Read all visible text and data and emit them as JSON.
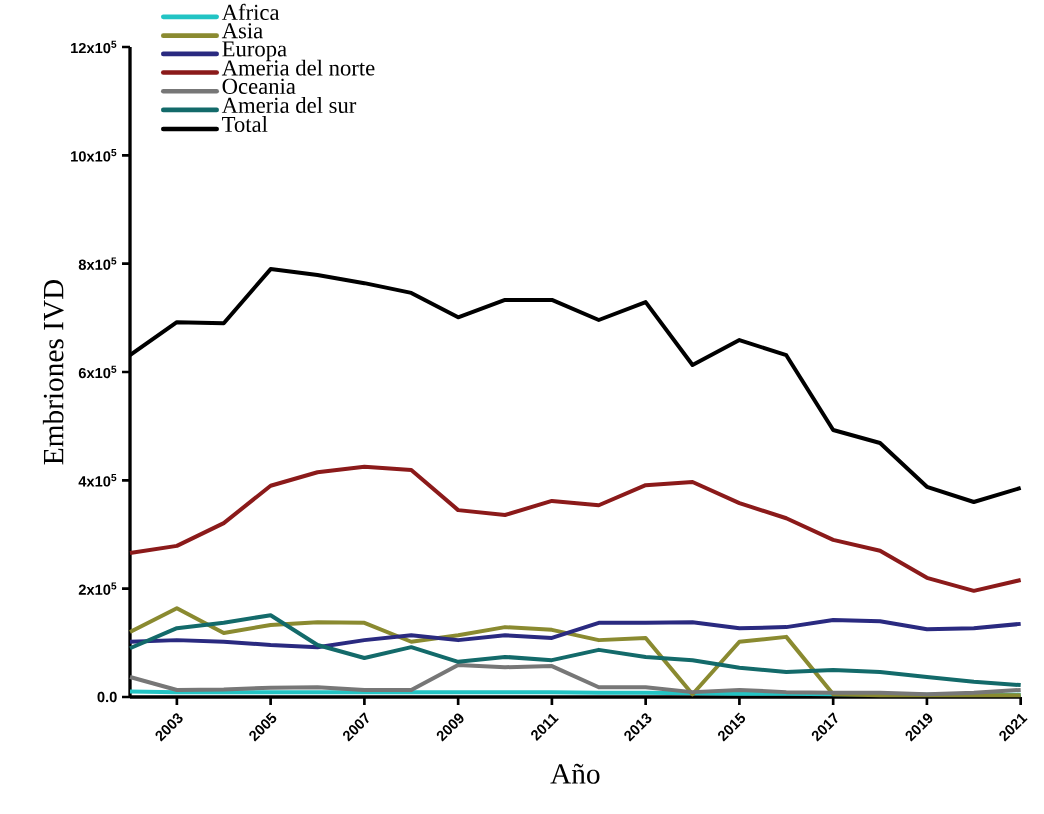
{
  "chart_data": {
    "type": "line",
    "xlabel": "Año",
    "ylabel": "Embriones IVD",
    "legend": "top left",
    "x": [
      2002,
      2003,
      2004,
      2005,
      2006,
      2007,
      2008,
      2009,
      2010,
      2011,
      2012,
      2013,
      2014,
      2015,
      2016,
      2017,
      2018,
      2019,
      2020,
      2021
    ],
    "xlim": [
      2002,
      2021
    ],
    "xticks": [
      2003,
      2005,
      2007,
      2009,
      2011,
      2013,
      2015,
      2017,
      2019,
      2021
    ],
    "ylim": [
      0,
      1200000
    ],
    "yticks": [
      {
        "value": 0,
        "label": "0.0"
      },
      {
        "value": 200000,
        "label": "2x10$^{5}$"
      },
      {
        "value": 400000,
        "label": "4x10$^{5}$"
      },
      {
        "value": 600000,
        "label": "6x10$^{5}$"
      },
      {
        "value": 800000,
        "label": "8x10$^{5}$"
      },
      {
        "value": 1000000,
        "label": "10x10$^{5}$"
      },
      {
        "value": 1200000,
        "label": "12x10$^{5}$"
      }
    ],
    "series": [
      {
        "name": "Africa",
        "color": "#22c4c4",
        "values": [
          10000,
          9000,
          9000,
          9000,
          9000,
          9000,
          9000,
          9000,
          9000,
          9000,
          8000,
          8000,
          7000,
          6000,
          6000,
          5000,
          5000,
          4000,
          4000,
          4000
        ]
      },
      {
        "name": "Asia",
        "color": "#8a8a30",
        "values": [
          120000,
          164000,
          118000,
          133000,
          138000,
          137000,
          102000,
          114000,
          129000,
          124000,
          105000,
          109000,
          5000,
          102000,
          111000,
          5000,
          3000,
          3000,
          3000,
          3000
        ]
      },
      {
        "name": "Europa",
        "color": "#2a2a80",
        "values": [
          102000,
          105000,
          102000,
          96000,
          92000,
          105000,
          114000,
          105000,
          114000,
          109000,
          137000,
          137000,
          138000,
          127000,
          129000,
          142000,
          140000,
          125000,
          127000,
          135000
        ]
      },
      {
        "name": "Ameria del norte",
        "color": "#8b1a1a",
        "values": [
          266000,
          279000,
          321000,
          390000,
          415000,
          425000,
          419000,
          345000,
          336000,
          362000,
          354000,
          391000,
          397000,
          358000,
          330000,
          290000,
          270000,
          220000,
          196000,
          216000
        ]
      },
      {
        "name": "Oceania",
        "color": "#777777",
        "values": [
          37000,
          13000,
          14000,
          17000,
          18000,
          13000,
          13000,
          59000,
          55000,
          57000,
          18000,
          18000,
          9000,
          13000,
          9000,
          8000,
          8000,
          5000,
          8000,
          13000
        ]
      },
      {
        "name": "Ameria del sur",
        "color": "#136a6a",
        "values": [
          90000,
          127000,
          137000,
          151000,
          96000,
          72000,
          92000,
          65000,
          74000,
          68000,
          87000,
          74000,
          68000,
          54000,
          46000,
          50000,
          46000,
          37000,
          28000,
          22000
        ]
      },
      {
        "name": "Total",
        "color": "#000000",
        "values": [
          631000,
          692000,
          690000,
          790000,
          779000,
          764000,
          746000,
          701000,
          733000,
          733000,
          696000,
          729000,
          613000,
          659000,
          631000,
          493000,
          469000,
          388000,
          360000,
          386000
        ]
      }
    ]
  }
}
